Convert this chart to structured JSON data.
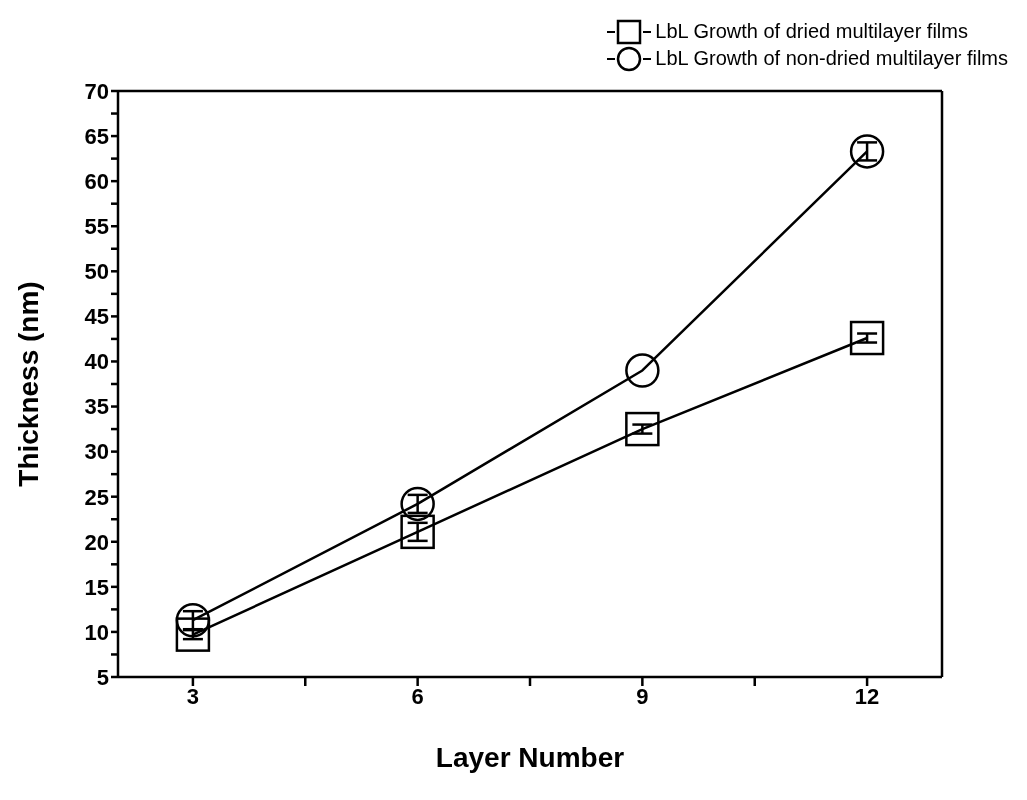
{
  "chart_data": {
    "type": "line",
    "xlabel": "Layer Number",
    "ylabel": "Thickness (nm)",
    "x": [
      3,
      6,
      9,
      12
    ],
    "series": [
      {
        "name": "LbL Growth of dried multilayer films",
        "color": "#000000",
        "marker": "square",
        "values": [
          9.7,
          21.1,
          32.5,
          42.6
        ],
        "errors": [
          0.5,
          1,
          0.5,
          0.5
        ]
      },
      {
        "name": "LbL Growth of non-dried multilayer films",
        "color": "#000000",
        "marker": "circle",
        "values": [
          11.3,
          24.2,
          39.0,
          63.3
        ],
        "errors": [
          1,
          1,
          null,
          1
        ]
      }
    ],
    "xlim": [
      2,
      13
    ],
    "xticks": [
      3,
      {
        "value": 4.5,
        "label": null
      },
      6,
      {
        "value": 7.5,
        "label": null
      },
      9,
      {
        "value": 10.5,
        "label": null
      },
      12
    ],
    "ylim": [
      5,
      70
    ],
    "yticks": [
      5,
      {
        "value": 7.5,
        "label": null
      },
      10,
      {
        "value": 12.5,
        "label": null
      },
      15,
      {
        "value": 17.5,
        "label": null
      },
      20,
      {
        "value": 22.5,
        "label": null
      },
      25,
      {
        "value": 27.5,
        "label": null
      },
      30,
      {
        "value": 32.5,
        "label": null
      },
      35,
      {
        "value": 37.5,
        "label": null
      },
      40,
      {
        "value": 42.5,
        "label": null
      },
      45,
      {
        "value": 47.5,
        "label": null
      },
      50,
      {
        "value": 52.5,
        "label": null
      },
      55,
      {
        "value": 57.5,
        "label": null
      },
      60,
      {
        "value": 62.5,
        "label": null
      },
      65,
      {
        "value": 67.5,
        "label": null
      },
      70
    ],
    "legend": "top right",
    "grid": false,
    "line_style": "solid"
  }
}
